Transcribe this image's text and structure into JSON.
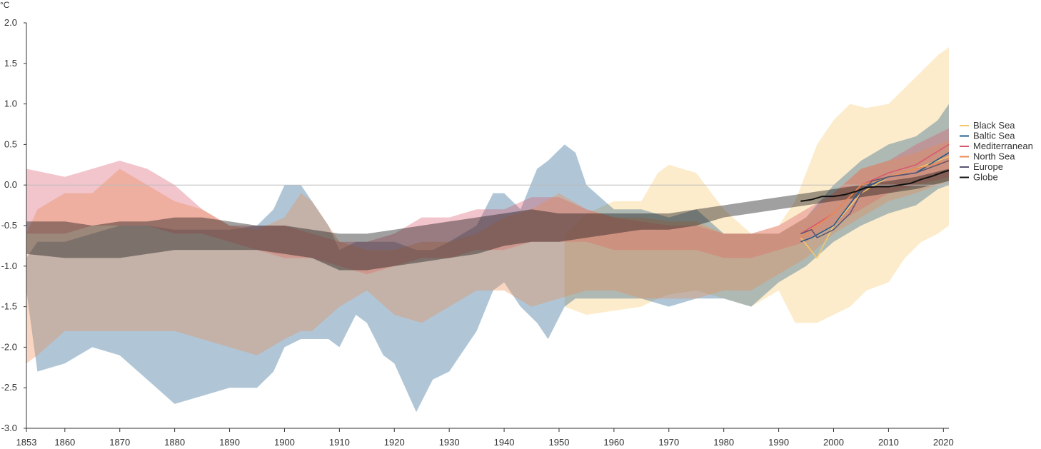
{
  "chart_data": {
    "type": "area",
    "title": "",
    "ylabel": "°C",
    "xlabel": "",
    "xlim": [
      1853,
      2021
    ],
    "ylim": [
      -3.0,
      2.0
    ],
    "x_ticks": [
      1853,
      1860,
      1870,
      1880,
      1890,
      1900,
      1910,
      1920,
      1930,
      1940,
      1950,
      1960,
      1970,
      1980,
      1990,
      2000,
      2010,
      2020
    ],
    "y_ticks": [
      {
        "value": 2.0,
        "label": "2.0"
      },
      {
        "value": 1.5,
        "label": "1.5"
      },
      {
        "value": 1.0,
        "label": "1.0"
      },
      {
        "value": 0.5,
        "label": "0.5"
      },
      {
        "value": 0.0,
        "label": "0.0"
      },
      {
        "value": -0.5,
        "label": "-0.5"
      },
      {
        "value": -1.0,
        "label": "-1.0"
      },
      {
        "value": -1.5,
        "label": "-1.5"
      },
      {
        "value": -2.0,
        "label": "-2.0"
      },
      {
        "value": -2.5,
        "label": "-2.5"
      },
      {
        "value": -3.0,
        "label": "-3.0"
      }
    ],
    "legend_position": "right",
    "series": [
      {
        "name": "Black Sea",
        "color": "#f5c86b",
        "band_opacity": 0.35,
        "band": [
          [
            1951,
            -0.62,
            -1.5
          ],
          [
            1955,
            -0.35,
            -1.6
          ],
          [
            1960,
            -0.2,
            -1.55
          ],
          [
            1965,
            -0.2,
            -1.5
          ],
          [
            1968,
            0.15,
            -1.4
          ],
          [
            1970,
            0.25,
            -1.35
          ],
          [
            1975,
            0.15,
            -1.3
          ],
          [
            1980,
            -0.3,
            -1.4
          ],
          [
            1985,
            -0.6,
            -1.5
          ],
          [
            1990,
            -0.5,
            -1.3
          ],
          [
            1993,
            -0.2,
            -1.7
          ],
          [
            1997,
            0.5,
            -1.7
          ],
          [
            2000,
            0.8,
            -1.6
          ],
          [
            2003,
            1.0,
            -1.5
          ],
          [
            2006,
            0.95,
            -1.3
          ],
          [
            2010,
            1.0,
            -1.2
          ],
          [
            2013,
            1.2,
            -0.9
          ],
          [
            2016,
            1.4,
            -0.7
          ],
          [
            2019,
            1.6,
            -0.6
          ],
          [
            2021,
            1.7,
            -0.5
          ]
        ],
        "line": [
          [
            1994,
            -0.65
          ],
          [
            1997,
            -0.9
          ],
          [
            2000,
            -0.5
          ],
          [
            2005,
            -0.1
          ],
          [
            2010,
            0.1
          ],
          [
            2015,
            0.2
          ],
          [
            2021,
            0.35
          ]
        ]
      },
      {
        "name": "Baltic Sea",
        "color": "#1d5b8a",
        "band_opacity": 0.35,
        "band": [
          [
            1853,
            -0.9,
            -1.3
          ],
          [
            1855,
            -0.7,
            -2.3
          ],
          [
            1860,
            -0.7,
            -2.2
          ],
          [
            1865,
            -0.6,
            -2.0
          ],
          [
            1870,
            -0.5,
            -2.1
          ],
          [
            1875,
            -0.5,
            -2.4
          ],
          [
            1880,
            -0.55,
            -2.7
          ],
          [
            1885,
            -0.55,
            -2.6
          ],
          [
            1890,
            -0.55,
            -2.5
          ],
          [
            1895,
            -0.5,
            -2.5
          ],
          [
            1898,
            -0.3,
            -2.3
          ],
          [
            1900,
            0.0,
            -2.0
          ],
          [
            1903,
            0.0,
            -1.9
          ],
          [
            1905,
            -0.2,
            -1.9
          ],
          [
            1908,
            -0.5,
            -1.9
          ],
          [
            1910,
            -0.8,
            -2.0
          ],
          [
            1913,
            -0.7,
            -1.6
          ],
          [
            1915,
            -0.7,
            -1.7
          ],
          [
            1918,
            -0.7,
            -2.1
          ],
          [
            1920,
            -0.7,
            -2.2
          ],
          [
            1924,
            -0.8,
            -2.8
          ],
          [
            1927,
            -0.8,
            -2.4
          ],
          [
            1930,
            -0.7,
            -2.3
          ],
          [
            1935,
            -0.5,
            -1.8
          ],
          [
            1938,
            -0.1,
            -1.3
          ],
          [
            1940,
            -0.1,
            -1.2
          ],
          [
            1943,
            -0.3,
            -1.5
          ],
          [
            1946,
            0.2,
            -1.7
          ],
          [
            1948,
            0.3,
            -1.9
          ],
          [
            1951,
            0.5,
            -1.5
          ],
          [
            1953,
            0.4,
            -1.4
          ],
          [
            1955,
            0.0,
            -1.4
          ],
          [
            1960,
            -0.3,
            -1.4
          ],
          [
            1965,
            -0.3,
            -1.4
          ],
          [
            1970,
            -0.4,
            -1.5
          ],
          [
            1975,
            -0.3,
            -1.4
          ],
          [
            1980,
            -0.6,
            -1.4
          ],
          [
            1985,
            -0.6,
            -1.5
          ],
          [
            1990,
            -0.6,
            -1.2
          ],
          [
            1995,
            -0.4,
            -1.0
          ],
          [
            2000,
            0.0,
            -0.7
          ],
          [
            2005,
            0.3,
            -0.5
          ],
          [
            2010,
            0.5,
            -0.35
          ],
          [
            2015,
            0.6,
            -0.25
          ],
          [
            2019,
            0.8,
            -0.05
          ],
          [
            2021,
            1.0,
            0.0
          ]
        ],
        "line": [
          [
            1994,
            -0.7
          ],
          [
            1996,
            -0.65
          ],
          [
            2000,
            -0.5
          ],
          [
            2005,
            -0.05
          ],
          [
            2010,
            0.1
          ],
          [
            2015,
            0.15
          ],
          [
            2021,
            0.4
          ]
        ]
      },
      {
        "name": "Mediterranean",
        "color": "#d9576b",
        "band_opacity": 0.35,
        "band": [
          [
            1853,
            0.2,
            -0.6
          ],
          [
            1860,
            0.1,
            -0.6
          ],
          [
            1865,
            0.2,
            -0.5
          ],
          [
            1870,
            0.3,
            -0.5
          ],
          [
            1875,
            0.2,
            -0.5
          ],
          [
            1880,
            0.0,
            -0.6
          ],
          [
            1885,
            -0.3,
            -0.6
          ],
          [
            1890,
            -0.5,
            -0.7
          ],
          [
            1895,
            -0.5,
            -0.8
          ],
          [
            1900,
            -0.5,
            -0.9
          ],
          [
            1905,
            -0.6,
            -0.9
          ],
          [
            1910,
            -0.7,
            -1.0
          ],
          [
            1915,
            -0.7,
            -1.1
          ],
          [
            1920,
            -0.6,
            -1.0
          ],
          [
            1925,
            -0.4,
            -0.9
          ],
          [
            1930,
            -0.4,
            -0.9
          ],
          [
            1935,
            -0.3,
            -0.8
          ],
          [
            1940,
            -0.3,
            -0.8
          ],
          [
            1945,
            -0.15,
            -0.7
          ],
          [
            1950,
            -0.15,
            -0.7
          ],
          [
            1955,
            -0.3,
            -0.7
          ],
          [
            1960,
            -0.4,
            -0.8
          ],
          [
            1965,
            -0.45,
            -0.8
          ],
          [
            1970,
            -0.5,
            -0.8
          ],
          [
            1975,
            -0.5,
            -0.8
          ],
          [
            1980,
            -0.6,
            -0.9
          ],
          [
            1985,
            -0.6,
            -0.9
          ],
          [
            1990,
            -0.5,
            -0.8
          ],
          [
            1995,
            -0.3,
            -0.7
          ],
          [
            2000,
            -0.1,
            -0.5
          ],
          [
            2005,
            0.2,
            -0.3
          ],
          [
            2010,
            0.3,
            -0.1
          ],
          [
            2015,
            0.5,
            0.0
          ],
          [
            2021,
            0.7,
            0.1
          ]
        ],
        "line": [
          [
            1994,
            -0.6
          ],
          [
            2000,
            -0.35
          ],
          [
            2005,
            0.0
          ],
          [
            2010,
            0.15
          ],
          [
            2015,
            0.25
          ],
          [
            2021,
            0.5
          ]
        ]
      },
      {
        "name": "North Sea",
        "color": "#ec8a50",
        "band_opacity": 0.35,
        "band": [
          [
            1853,
            -0.6,
            -2.2
          ],
          [
            1855,
            -0.3,
            -2.1
          ],
          [
            1860,
            -0.1,
            -1.8
          ],
          [
            1865,
            -0.1,
            -1.8
          ],
          [
            1870,
            0.2,
            -1.8
          ],
          [
            1875,
            0.0,
            -1.8
          ],
          [
            1880,
            -0.2,
            -1.8
          ],
          [
            1885,
            -0.3,
            -1.9
          ],
          [
            1890,
            -0.5,
            -2.0
          ],
          [
            1895,
            -0.55,
            -2.1
          ],
          [
            1900,
            -0.4,
            -1.9
          ],
          [
            1903,
            -0.1,
            -1.8
          ],
          [
            1905,
            -0.2,
            -1.8
          ],
          [
            1910,
            -0.7,
            -1.5
          ],
          [
            1915,
            -0.8,
            -1.3
          ],
          [
            1920,
            -0.8,
            -1.6
          ],
          [
            1925,
            -0.7,
            -1.7
          ],
          [
            1930,
            -0.7,
            -1.5
          ],
          [
            1935,
            -0.6,
            -1.3
          ],
          [
            1940,
            -0.4,
            -1.3
          ],
          [
            1945,
            -0.3,
            -1.5
          ],
          [
            1950,
            -0.1,
            -1.4
          ],
          [
            1955,
            -0.3,
            -1.3
          ],
          [
            1960,
            -0.4,
            -1.3
          ],
          [
            1965,
            -0.4,
            -1.4
          ],
          [
            1970,
            -0.45,
            -1.4
          ],
          [
            1975,
            -0.45,
            -1.4
          ],
          [
            1980,
            -0.6,
            -1.3
          ],
          [
            1985,
            -0.6,
            -1.3
          ],
          [
            1990,
            -0.6,
            -1.1
          ],
          [
            1995,
            -0.4,
            -0.9
          ],
          [
            2000,
            -0.1,
            -0.6
          ],
          [
            2005,
            0.2,
            -0.4
          ],
          [
            2010,
            0.3,
            -0.2
          ],
          [
            2015,
            0.4,
            -0.1
          ],
          [
            2021,
            0.55,
            0.05
          ]
        ],
        "line": [
          [
            1994,
            -0.65
          ],
          [
            2000,
            -0.35
          ],
          [
            2005,
            0.0
          ],
          [
            2010,
            0.1
          ],
          [
            2015,
            0.2
          ],
          [
            2021,
            0.3
          ]
        ]
      },
      {
        "name": "Europe",
        "color": "#5a5472",
        "band_opacity": 0.0,
        "band": [],
        "line": [
          [
            1994,
            -0.6
          ],
          [
            1996,
            -0.55
          ],
          [
            1997,
            -0.65
          ],
          [
            2000,
            -0.55
          ],
          [
            2003,
            -0.35
          ],
          [
            2005,
            -0.1
          ],
          [
            2007,
            0.05
          ],
          [
            2010,
            0.1
          ],
          [
            2015,
            0.15
          ],
          [
            2021,
            0.3
          ]
        ]
      },
      {
        "name": "Globe",
        "color": "#111111",
        "band_opacity": 0.4,
        "band": [
          [
            1853,
            -0.45,
            -0.85
          ],
          [
            1860,
            -0.45,
            -0.9
          ],
          [
            1865,
            -0.5,
            -0.9
          ],
          [
            1870,
            -0.45,
            -0.9
          ],
          [
            1875,
            -0.45,
            -0.85
          ],
          [
            1880,
            -0.4,
            -0.8
          ],
          [
            1885,
            -0.4,
            -0.8
          ],
          [
            1890,
            -0.45,
            -0.8
          ],
          [
            1895,
            -0.5,
            -0.8
          ],
          [
            1900,
            -0.5,
            -0.85
          ],
          [
            1905,
            -0.55,
            -0.9
          ],
          [
            1910,
            -0.6,
            -1.05
          ],
          [
            1915,
            -0.6,
            -1.05
          ],
          [
            1920,
            -0.55,
            -1.0
          ],
          [
            1925,
            -0.5,
            -0.95
          ],
          [
            1930,
            -0.45,
            -0.9
          ],
          [
            1935,
            -0.4,
            -0.85
          ],
          [
            1940,
            -0.35,
            -0.75
          ],
          [
            1945,
            -0.3,
            -0.7
          ],
          [
            1950,
            -0.35,
            -0.7
          ],
          [
            1955,
            -0.35,
            -0.65
          ],
          [
            1960,
            -0.35,
            -0.6
          ],
          [
            1965,
            -0.35,
            -0.55
          ],
          [
            1970,
            -0.35,
            -0.55
          ],
          [
            1975,
            -0.3,
            -0.5
          ],
          [
            1980,
            -0.25,
            -0.4
          ],
          [
            1985,
            -0.2,
            -0.35
          ],
          [
            1990,
            -0.15,
            -0.3
          ],
          [
            1995,
            -0.1,
            -0.25
          ],
          [
            2000,
            -0.05,
            -0.2
          ],
          [
            2005,
            0.0,
            -0.15
          ],
          [
            2010,
            0.05,
            -0.1
          ],
          [
            2015,
            0.1,
            -0.05
          ],
          [
            2021,
            0.2,
            0.05
          ]
        ],
        "line": [
          [
            1994,
            -0.2
          ],
          [
            1996,
            -0.18
          ],
          [
            1998,
            -0.14
          ],
          [
            2000,
            -0.14
          ],
          [
            2002,
            -0.12
          ],
          [
            2004,
            -0.08
          ],
          [
            2006,
            -0.03
          ],
          [
            2008,
            -0.02
          ],
          [
            2010,
            -0.02
          ],
          [
            2012,
            0.0
          ],
          [
            2014,
            0.02
          ],
          [
            2016,
            0.07
          ],
          [
            2018,
            0.11
          ],
          [
            2020,
            0.16
          ],
          [
            2021,
            0.18
          ]
        ]
      }
    ]
  }
}
